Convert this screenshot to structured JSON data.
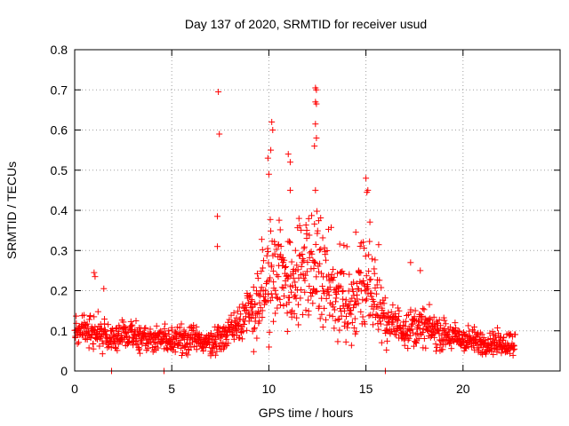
{
  "chart_data": {
    "type": "scatter",
    "title": "Day 137 of 2020, SRMTID for receiver usud",
    "xlabel": "GPS time / hours",
    "ylabel": "SRMTID / TECUs",
    "xlim": [
      0,
      25
    ],
    "ylim": [
      0,
      0.8
    ],
    "xticks": [
      0,
      5,
      10,
      15,
      20
    ],
    "xtick_labels": [
      "0",
      "5",
      "10",
      "15",
      "20"
    ],
    "yticks": [
      0,
      0.1,
      0.2,
      0.3,
      0.4,
      0.5,
      0.6,
      0.7,
      0.8
    ],
    "ytick_labels": [
      "0",
      "0.1",
      "0.2",
      "0.3",
      "0.4",
      "0.5",
      "0.6",
      "0.7",
      "0.8"
    ],
    "grid": true,
    "marker": "+",
    "series_color": "#ff0000",
    "envelope": {
      "description": "typical (median-like) SRMTID level vs time, used to represent the dense point cloud",
      "x": [
        0,
        1,
        2,
        3,
        4,
        5,
        6,
        7,
        8,
        8.5,
        9,
        9.5,
        10,
        10.5,
        11,
        11.5,
        12,
        12.5,
        13,
        13.5,
        14,
        14.5,
        15,
        15.5,
        16,
        17,
        18,
        19,
        20,
        21,
        22,
        22.7
      ],
      "y": [
        0.1,
        0.1,
        0.08,
        0.09,
        0.08,
        0.08,
        0.08,
        0.07,
        0.1,
        0.13,
        0.15,
        0.17,
        0.21,
        0.22,
        0.23,
        0.23,
        0.24,
        0.23,
        0.22,
        0.18,
        0.16,
        0.18,
        0.22,
        0.18,
        0.12,
        0.11,
        0.11,
        0.09,
        0.08,
        0.07,
        0.07,
        0.07
      ]
    },
    "notable_points": [
      {
        "x": 7.4,
        "y": 0.695
      },
      {
        "x": 7.45,
        "y": 0.59
      },
      {
        "x": 7.35,
        "y": 0.385
      },
      {
        "x": 7.35,
        "y": 0.31
      },
      {
        "x": 10.15,
        "y": 0.62
      },
      {
        "x": 10.2,
        "y": 0.6
      },
      {
        "x": 10.1,
        "y": 0.55
      },
      {
        "x": 9.95,
        "y": 0.53
      },
      {
        "x": 10.0,
        "y": 0.49
      },
      {
        "x": 11.0,
        "y": 0.54
      },
      {
        "x": 11.1,
        "y": 0.52
      },
      {
        "x": 11.1,
        "y": 0.45
      },
      {
        "x": 12.4,
        "y": 0.705
      },
      {
        "x": 12.45,
        "y": 0.7
      },
      {
        "x": 12.4,
        "y": 0.67
      },
      {
        "x": 12.45,
        "y": 0.665
      },
      {
        "x": 12.4,
        "y": 0.615
      },
      {
        "x": 12.45,
        "y": 0.58
      },
      {
        "x": 12.35,
        "y": 0.56
      },
      {
        "x": 12.4,
        "y": 0.45
      },
      {
        "x": 15.0,
        "y": 0.48
      },
      {
        "x": 15.1,
        "y": 0.45
      },
      {
        "x": 15.05,
        "y": 0.445
      },
      {
        "x": 1.0,
        "y": 0.245
      },
      {
        "x": 1.05,
        "y": 0.235
      },
      {
        "x": 1.5,
        "y": 0.205
      },
      {
        "x": 17.3,
        "y": 0.27
      },
      {
        "x": 17.8,
        "y": 0.25
      },
      {
        "x": 1.9,
        "y": 0.0
      },
      {
        "x": 4.6,
        "y": 0.0
      },
      {
        "x": 16.0,
        "y": 0.0
      }
    ]
  }
}
